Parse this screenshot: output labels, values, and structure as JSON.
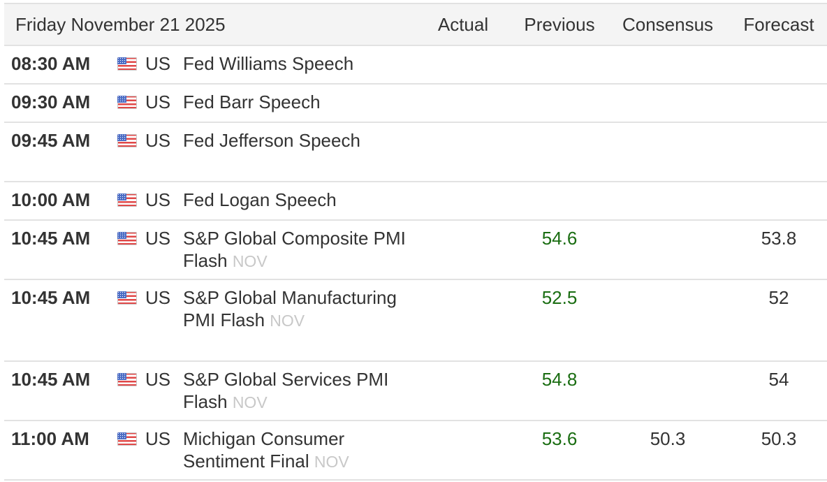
{
  "header": {
    "date": "Friday November 21 2025",
    "columns": [
      "Actual",
      "Previous",
      "Consensus",
      "Forecast"
    ]
  },
  "colors": {
    "positive": "#1a6d12",
    "period": "#c8c8c8",
    "header_bg": "#f4f4f4"
  },
  "events": [
    {
      "time": "08:30 AM",
      "flag": "us-flag-icon",
      "country": "US",
      "event": "Fed Williams Speech",
      "period": "",
      "actual": "",
      "previous": "",
      "consensus": "",
      "forecast": ""
    },
    {
      "time": "09:30 AM",
      "flag": "us-flag-icon",
      "country": "US",
      "event": "Fed Barr Speech",
      "period": "",
      "actual": "",
      "previous": "",
      "consensus": "",
      "forecast": ""
    },
    {
      "time": "09:45 AM",
      "flag": "us-flag-icon",
      "country": "US",
      "event": "Fed Jefferson Speech",
      "period": "",
      "actual": "",
      "previous": "",
      "consensus": "",
      "forecast": ""
    },
    {
      "time": "10:00 AM",
      "flag": "us-flag-icon",
      "country": "US",
      "event": "Fed Logan Speech",
      "period": "",
      "actual": "",
      "previous": "",
      "consensus": "",
      "forecast": ""
    },
    {
      "time": "10:45 AM",
      "flag": "us-flag-icon",
      "country": "US",
      "event": "S&P Global Composite PMI Flash",
      "period": "NOV",
      "actual": "",
      "previous": "54.6",
      "consensus": "",
      "forecast": "53.8"
    },
    {
      "time": "10:45 AM",
      "flag": "us-flag-icon",
      "country": "US",
      "event": "S&P Global Manufacturing PMI Flash",
      "period": "NOV",
      "actual": "",
      "previous": "52.5",
      "consensus": "",
      "forecast": "52"
    },
    {
      "time": "10:45 AM",
      "flag": "us-flag-icon",
      "country": "US",
      "event": "S&P Global Services PMI Flash",
      "period": "NOV",
      "actual": "",
      "previous": "54.8",
      "consensus": "",
      "forecast": "54"
    },
    {
      "time": "11:00 AM",
      "flag": "us-flag-icon",
      "country": "US",
      "event": "Michigan Consumer Sentiment Final",
      "period": "NOV",
      "actual": "",
      "previous": "53.6",
      "consensus": "50.3",
      "forecast": "50.3"
    }
  ]
}
